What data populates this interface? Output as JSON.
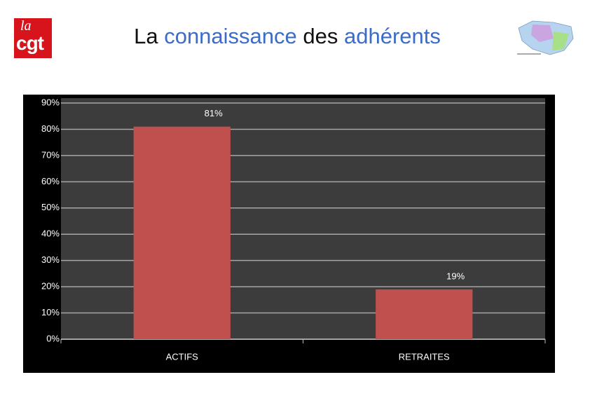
{
  "logo": {
    "top": "la",
    "bottom": "cgt"
  },
  "chart_data": {
    "type": "bar",
    "title": [
      "La",
      "connaissance",
      "des",
      "adhérents"
    ],
    "categories": [
      "ACTIFS",
      "RETRAITES"
    ],
    "values": [
      81,
      19
    ],
    "value_labels": [
      "81%",
      "19%"
    ],
    "color": "#c0504d",
    "ylim": [
      0,
      90
    ],
    "yticks": [
      {
        "value": 0,
        "label": "0%"
      },
      {
        "value": 10,
        "label": "10%"
      },
      {
        "value": 20,
        "label": "20%"
      },
      {
        "value": 30,
        "label": "30%"
      },
      {
        "value": 40,
        "label": "40%"
      },
      {
        "value": 50,
        "label": "50%"
      },
      {
        "value": 60,
        "label": "60%"
      },
      {
        "value": 70,
        "label": "70%"
      },
      {
        "value": 80,
        "label": "80%"
      },
      {
        "value": 90,
        "label": "90%"
      }
    ],
    "grid": true
  }
}
